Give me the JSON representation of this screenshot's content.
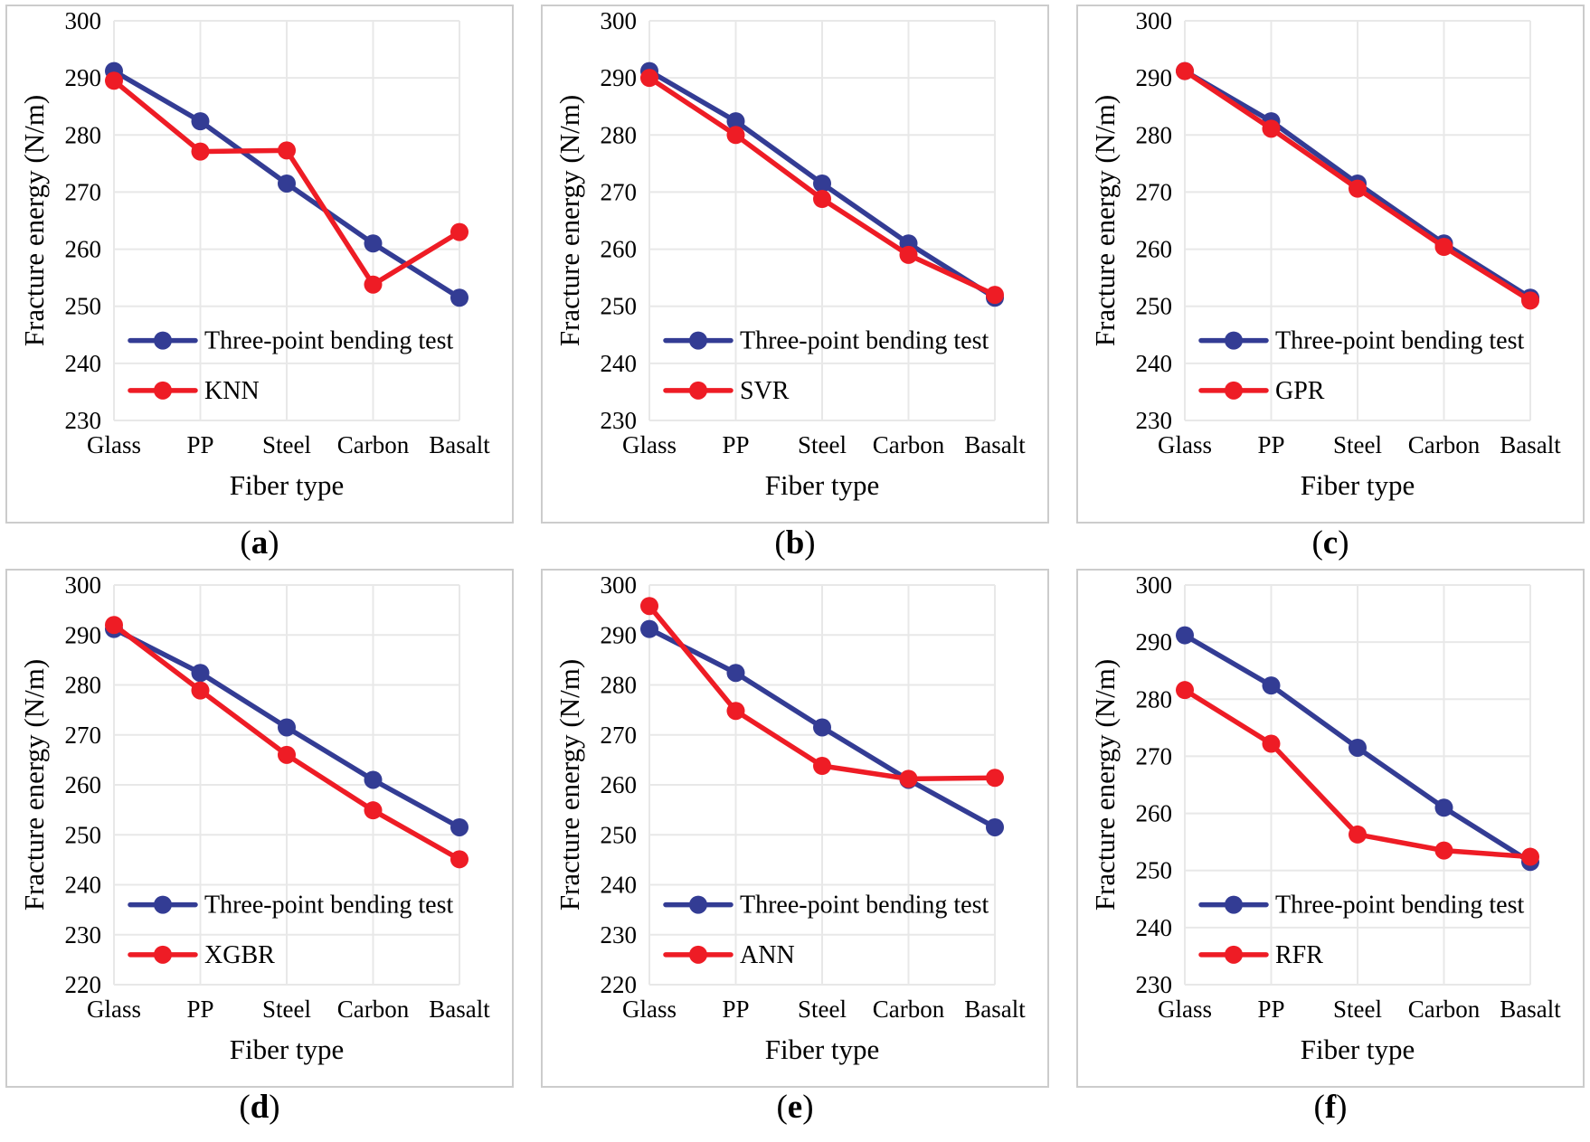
{
  "page": {
    "background": "#ffffff"
  },
  "figure": {
    "caption_open": "(",
    "caption_close": ")"
  },
  "colors": {
    "experiment_series": "#333C94",
    "model_series": "#EE1C25",
    "gridline": "#E8E8E8",
    "panel_border": "#CCCCCC",
    "text": "#000000"
  },
  "chart_data": [
    {
      "id": "a",
      "type": "line",
      "caption_letter": "a",
      "xlabel": "Fiber type",
      "ylabel": "Fracture energy (N/m)",
      "categories": [
        "Glass",
        "PP",
        "Steel",
        "Carbon",
        "Basalt"
      ],
      "ylim": [
        230,
        300
      ],
      "yticks": [
        230,
        240,
        250,
        260,
        270,
        280,
        290,
        300
      ],
      "grid": true,
      "legend_position": "inside-bottom-left",
      "series": [
        {
          "name": "Three-point bending test",
          "color": "#333C94",
          "values": [
            291.2,
            282.4,
            271.5,
            261.0,
            251.5
          ]
        },
        {
          "name": "KNN",
          "color": "#EE1C25",
          "values": [
            289.5,
            277.1,
            277.3,
            253.8,
            263.0
          ]
        }
      ]
    },
    {
      "id": "b",
      "type": "line",
      "caption_letter": "b",
      "xlabel": "Fiber type",
      "ylabel": "Fracture energy (N/m)",
      "categories": [
        "Glass",
        "PP",
        "Steel",
        "Carbon",
        "Basalt"
      ],
      "ylim": [
        230,
        300
      ],
      "yticks": [
        230,
        240,
        250,
        260,
        270,
        280,
        290,
        300
      ],
      "grid": true,
      "legend_position": "inside-bottom-left",
      "series": [
        {
          "name": "Three-point bending test",
          "color": "#333C94",
          "values": [
            291.2,
            282.4,
            271.5,
            261.0,
            251.5
          ]
        },
        {
          "name": "SVR",
          "color": "#EE1C25",
          "values": [
            290.0,
            280.0,
            268.8,
            259.0,
            252.0
          ]
        }
      ]
    },
    {
      "id": "c",
      "type": "line",
      "caption_letter": "c",
      "xlabel": "Fiber type",
      "ylabel": "Fracture energy (N/m)",
      "categories": [
        "Glass",
        "PP",
        "Steel",
        "Carbon",
        "Basalt"
      ],
      "ylim": [
        230,
        300
      ],
      "yticks": [
        230,
        240,
        250,
        260,
        270,
        280,
        290,
        300
      ],
      "grid": true,
      "legend_position": "inside-bottom-left",
      "series": [
        {
          "name": "Three-point bending test",
          "color": "#333C94",
          "values": [
            291.2,
            282.4,
            271.5,
            261.0,
            251.5
          ]
        },
        {
          "name": "GPR",
          "color": "#EE1C25",
          "values": [
            291.2,
            281.1,
            270.6,
            260.4,
            251.0
          ]
        }
      ]
    },
    {
      "id": "d",
      "type": "line",
      "caption_letter": "d",
      "xlabel": "Fiber type",
      "ylabel": "Fracture energy (N/m)",
      "categories": [
        "Glass",
        "PP",
        "Steel",
        "Carbon",
        "Basalt"
      ],
      "ylim": [
        220,
        300
      ],
      "yticks": [
        220,
        230,
        240,
        250,
        260,
        270,
        280,
        290,
        300
      ],
      "grid": true,
      "legend_position": "inside-bottom-left",
      "series": [
        {
          "name": "Three-point bending test",
          "color": "#333C94",
          "values": [
            291.2,
            282.4,
            271.5,
            261.0,
            251.5
          ]
        },
        {
          "name": "XGBR",
          "color": "#EE1C25",
          "values": [
            292.0,
            278.9,
            266.0,
            254.9,
            245.1
          ]
        }
      ]
    },
    {
      "id": "e",
      "type": "line",
      "caption_letter": "e",
      "xlabel": "Fiber type",
      "ylabel": "Fracture energy (N/m)",
      "categories": [
        "Glass",
        "PP",
        "Steel",
        "Carbon",
        "Basalt"
      ],
      "ylim": [
        220,
        300
      ],
      "yticks": [
        220,
        230,
        240,
        250,
        260,
        270,
        280,
        290,
        300
      ],
      "grid": true,
      "legend_position": "inside-bottom-left",
      "series": [
        {
          "name": "Three-point bending test",
          "color": "#333C94",
          "values": [
            291.2,
            282.4,
            271.5,
            261.0,
            251.5
          ]
        },
        {
          "name": "ANN",
          "color": "#EE1C25",
          "values": [
            295.8,
            274.8,
            263.8,
            261.2,
            261.4
          ]
        }
      ]
    },
    {
      "id": "f",
      "type": "line",
      "caption_letter": "f",
      "xlabel": "Fiber type",
      "ylabel": "Fracture energy (N/m)",
      "categories": [
        "Glass",
        "PP",
        "Steel",
        "Carbon",
        "Basalt"
      ],
      "ylim": [
        230,
        300
      ],
      "yticks": [
        230,
        240,
        250,
        260,
        270,
        280,
        290,
        300
      ],
      "grid": true,
      "legend_position": "inside-bottom-left",
      "series": [
        {
          "name": "Three-point bending test",
          "color": "#333C94",
          "values": [
            291.2,
            282.4,
            271.5,
            261.0,
            251.5
          ]
        },
        {
          "name": "RFR",
          "color": "#EE1C25",
          "values": [
            281.6,
            272.2,
            256.3,
            253.5,
            252.4
          ]
        }
      ]
    }
  ]
}
